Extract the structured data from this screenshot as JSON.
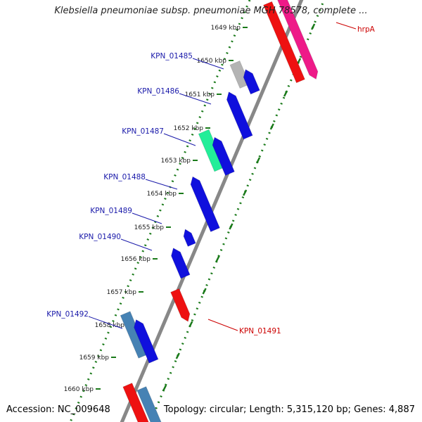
{
  "title": "Klebsiella pneumoniae subsp. pneumoniae MGH 78578, complete ...",
  "footer": {
    "accession": "Accession: NC_009648",
    "topology": "Topology: circular; Length: 5,315,120 bp; Genes: 4,887"
  },
  "kbp_ticks": [
    "1649 kbp",
    "1650 kbp",
    "1651 kbp",
    "1652 kbp",
    "1653 kbp",
    "1654 kbp",
    "1655 kbp",
    "1656 kbp",
    "1657 kbp",
    "1658 kbp",
    "1659 kbp",
    "1660 kbp"
  ],
  "gene_labels": [
    "hrpA",
    "KPN_01485",
    "KPN_01486",
    "KPN_01487",
    "KPN_01488",
    "KPN_01489",
    "KPN_01490",
    "KPN_01491",
    "KPN_01492"
  ],
  "colors": {
    "forward_label": "#1a1aaa",
    "reverse_label": "#cc0000",
    "backbone": "#888888",
    "tick": "#1a7a1a"
  }
}
